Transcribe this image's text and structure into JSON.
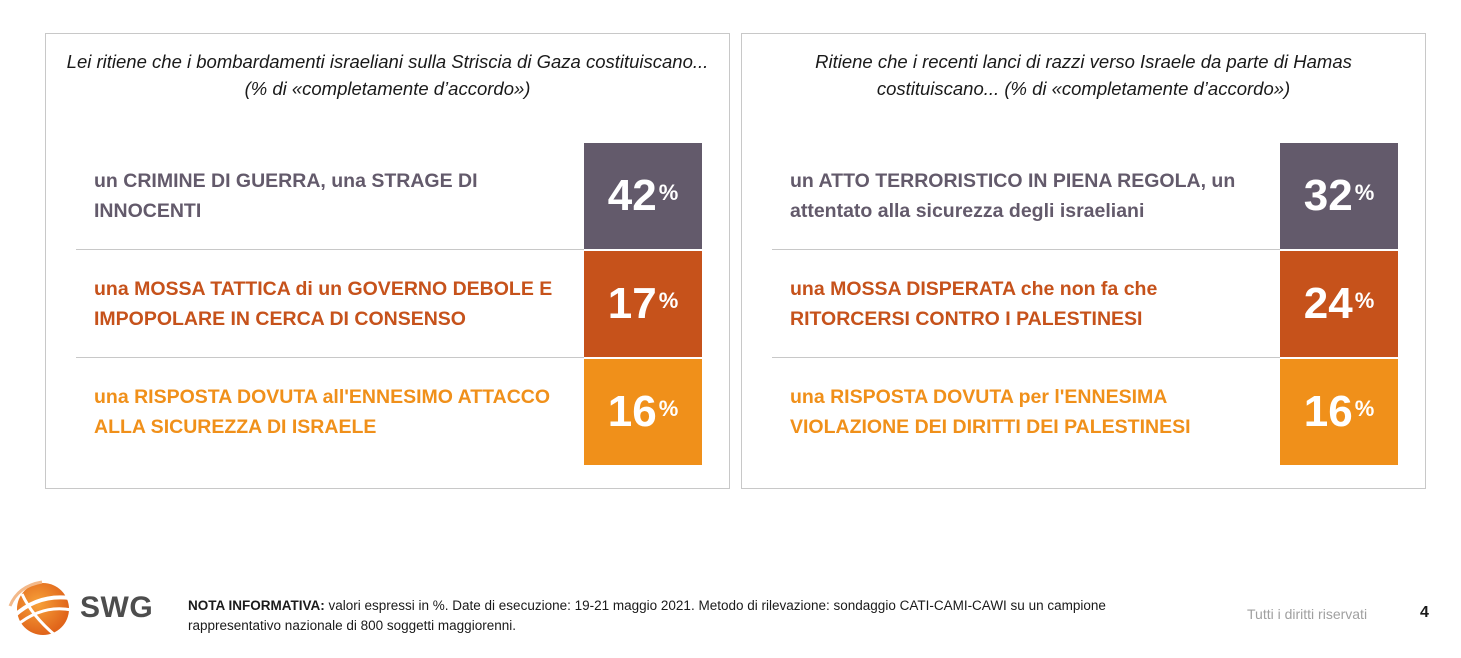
{
  "colors": {
    "row1": "#635a6b",
    "row2": "#c6521b",
    "row3": "#f0901a",
    "label1": "#635a6b",
    "label2": "#c6521b",
    "label3": "#f0901a"
  },
  "chart_data": [
    {
      "type": "table",
      "title": "Lei ritiene che i bombardamenti israeliani sulla Striscia di Gaza costituiscano... (% di «completamente d’accordo»)",
      "categories": [
        "un CRIMINE DI GUERRA, una STRAGE DI INNOCENTI",
        "una MOSSA TATTICA di un GOVERNO DEBOLE E IMPOPOLARE IN CERCA DI CONSENSO",
        "una RISPOSTA DOVUTA all'ENNESIMO ATTACCO ALLA SICUREZZA DI ISRAELE"
      ],
      "values": [
        42,
        17,
        16
      ],
      "unit": "%"
    },
    {
      "type": "table",
      "title": "Ritiene che i recenti lanci di razzi verso Israele da parte di Hamas costituiscano... (% di «completamente d’accordo»)",
      "categories": [
        "un ATTO TERRORISTICO IN PIENA REGOLA, un attentato alla sicurezza degli israeliani",
        "una MOSSA DISPERATA che non fa che RITORCERSI CONTRO I PALESTINESI",
        "una RISPOSTA DOVUTA per l'ENNESIMA VIOLAZIONE DEI DIRITTI DEI PALESTINESI"
      ],
      "values": [
        32,
        24,
        16
      ],
      "unit": "%"
    }
  ],
  "footer": {
    "brand": "SWG",
    "note_label": "NOTA INFORMATIVA:",
    "note_text": " valori espressi in %. Date di esecuzione: 19-21 maggio 2021. Metodo di rilevazione: sondaggio CATI-CAMI-CAWI su un campione rappresentativo nazionale di 800 soggetti maggiorenni.",
    "rights": "Tutti i diritti riservati",
    "page": "4"
  }
}
